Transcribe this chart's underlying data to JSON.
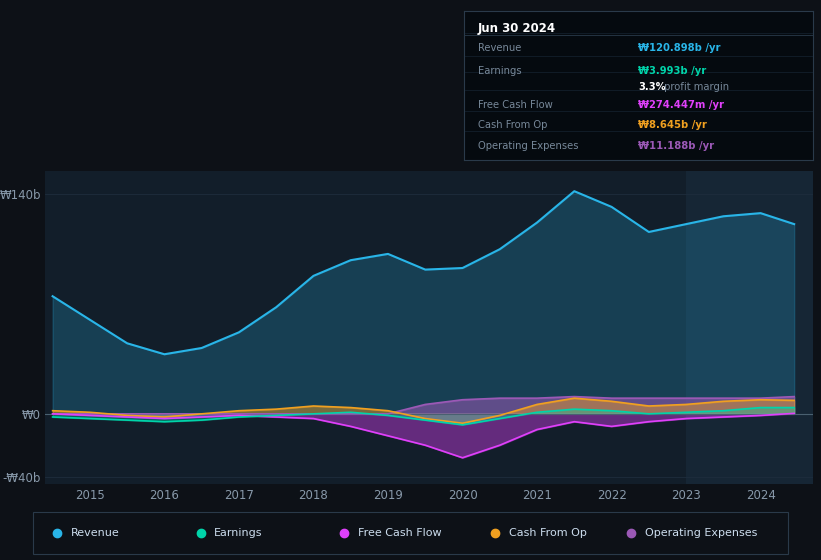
{
  "bg_color": "#0d1117",
  "plot_bg_color": "#121e2a",
  "grid_color": "#1e2d3d",
  "x_years": [
    2014.5,
    2015.0,
    2015.5,
    2016.0,
    2016.5,
    2017.0,
    2017.5,
    2018.0,
    2018.5,
    2019.0,
    2019.5,
    2020.0,
    2020.5,
    2021.0,
    2021.5,
    2022.0,
    2022.5,
    2023.0,
    2023.5,
    2024.0,
    2024.45
  ],
  "revenue": [
    75,
    60,
    45,
    38,
    42,
    52,
    68,
    88,
    98,
    102,
    92,
    93,
    105,
    122,
    142,
    132,
    116,
    121,
    126,
    128,
    121
  ],
  "earnings": [
    -2,
    -3,
    -4,
    -5,
    -4,
    -2,
    -1,
    0,
    1,
    -1,
    -4,
    -7,
    -3,
    1,
    3,
    2,
    0,
    1,
    2,
    4,
    4
  ],
  "free_cash_flow": [
    0,
    -1,
    -2,
    -3,
    -2,
    -1,
    -2,
    -3,
    -8,
    -14,
    -20,
    -28,
    -20,
    -10,
    -5,
    -8,
    -5,
    -3,
    -2,
    -1,
    0.3
  ],
  "cash_from_op": [
    2,
    1,
    -1,
    -2,
    0,
    2,
    3,
    5,
    4,
    2,
    -3,
    -6,
    -1,
    6,
    10,
    8,
    5,
    6,
    8,
    9,
    8.6
  ],
  "operating_expenses": [
    0,
    0,
    0,
    0,
    0,
    0,
    0,
    0,
    0,
    0,
    6,
    9,
    10,
    10,
    11,
    10,
    10,
    10,
    10,
    10,
    11
  ],
  "revenue_color": "#29b5e8",
  "earnings_color": "#00d4aa",
  "fcf_color": "#e040fb",
  "cashop_color": "#f0a020",
  "opex_color": "#9b59b6",
  "ylim_min": -45,
  "ylim_max": 155,
  "xlim_min": 2014.4,
  "xlim_max": 2024.7,
  "highlight_start": 2023.0,
  "highlight_end": 2024.7,
  "info_box": {
    "date": "Jun 30 2024",
    "revenue_label": "Revenue",
    "revenue_value": "₩120.898b /yr",
    "earnings_label": "Earnings",
    "earnings_value": "₩3.993b /yr",
    "margin_text": "3.3% profit margin",
    "fcf_label": "Free Cash Flow",
    "fcf_value": "₩274.447m /yr",
    "cashop_label": "Cash From Op",
    "cashop_value": "₩8.645b /yr",
    "opex_label": "Operating Expenses",
    "opex_value": "₩11.188b /yr"
  },
  "legend_items": [
    "Revenue",
    "Earnings",
    "Free Cash Flow",
    "Cash From Op",
    "Operating Expenses"
  ],
  "legend_colors": [
    "#29b5e8",
    "#00d4aa",
    "#e040fb",
    "#f0a020",
    "#9b59b6"
  ]
}
